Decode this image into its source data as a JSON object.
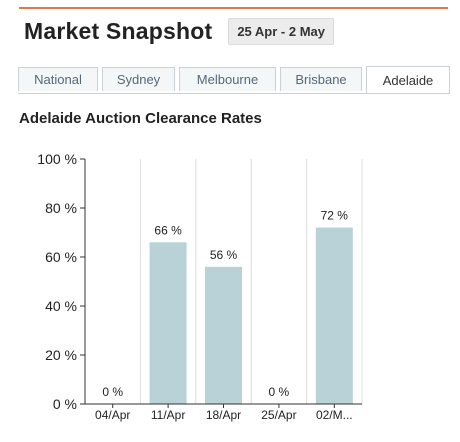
{
  "header": {
    "title": "Market Snapshot",
    "date_range": "25 Apr - 2 May"
  },
  "tabs": [
    {
      "label": "National",
      "active": false
    },
    {
      "label": "Sydney",
      "active": false
    },
    {
      "label": "Melbourne",
      "active": false
    },
    {
      "label": "Brisbane",
      "active": false
    },
    {
      "label": "Adelaide",
      "active": true
    }
  ],
  "colors": {
    "accent_rule": "#e07a45",
    "bar": "#b8d2d8",
    "grid": "#dcdcdc"
  },
  "chart_data": {
    "type": "bar",
    "title": "Adelaide Auction Clearance Rates",
    "categories": [
      "04/Apr",
      "11/Apr",
      "18/Apr",
      "25/Apr",
      "02/M..."
    ],
    "values": [
      0,
      66,
      56,
      0,
      72
    ],
    "data_labels": [
      "0 %",
      "66 %",
      "56 %",
      "0 %",
      "72 %"
    ],
    "ylim": [
      0,
      100
    ],
    "yticks": [
      0,
      20,
      40,
      60,
      80,
      100
    ],
    "ytick_labels": [
      "0 %",
      "20 %",
      "40 %",
      "60 %",
      "80 %",
      "100 %"
    ],
    "grid": "vertical",
    "xlabel": "",
    "ylabel": ""
  }
}
